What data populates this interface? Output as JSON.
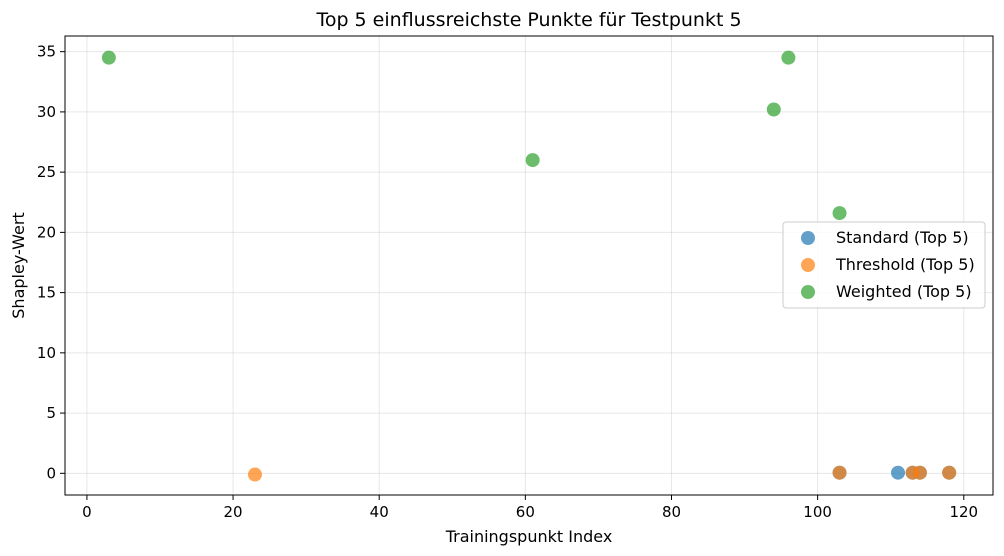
{
  "chart_data": {
    "type": "scatter",
    "title": "Top 5 einflussreichste Punkte für Testpunkt 5",
    "xlabel": "Trainingspunkt Index",
    "ylabel": "Shapley-Wert",
    "xlim": [
      -3,
      124
    ],
    "ylim": [
      -1.8,
      36.3
    ],
    "xticks": [
      0,
      20,
      40,
      60,
      80,
      100,
      120
    ],
    "yticks": [
      0,
      5,
      10,
      15,
      20,
      25,
      30,
      35
    ],
    "grid": true,
    "legend_position": "center-right",
    "series": [
      {
        "name": "Standard (Top 5)",
        "color": "#1f77b4",
        "points": [
          [
            103,
            0.05
          ],
          [
            111,
            0.05
          ],
          [
            113,
            0.05
          ],
          [
            114,
            0.05
          ],
          [
            118,
            0.05
          ]
        ]
      },
      {
        "name": "Threshold (Top 5)",
        "color": "#ff7f0e",
        "points": [
          [
            23,
            -0.1
          ],
          [
            103,
            0.05
          ],
          [
            113,
            0.05
          ],
          [
            114,
            0.05
          ],
          [
            118,
            0.05
          ]
        ]
      },
      {
        "name": "Weighted (Top 5)",
        "color": "#2ca02c",
        "points": [
          [
            3,
            34.5
          ],
          [
            61,
            26.0
          ],
          [
            94,
            30.2
          ],
          [
            96,
            34.5
          ],
          [
            103,
            21.6
          ]
        ]
      }
    ]
  }
}
